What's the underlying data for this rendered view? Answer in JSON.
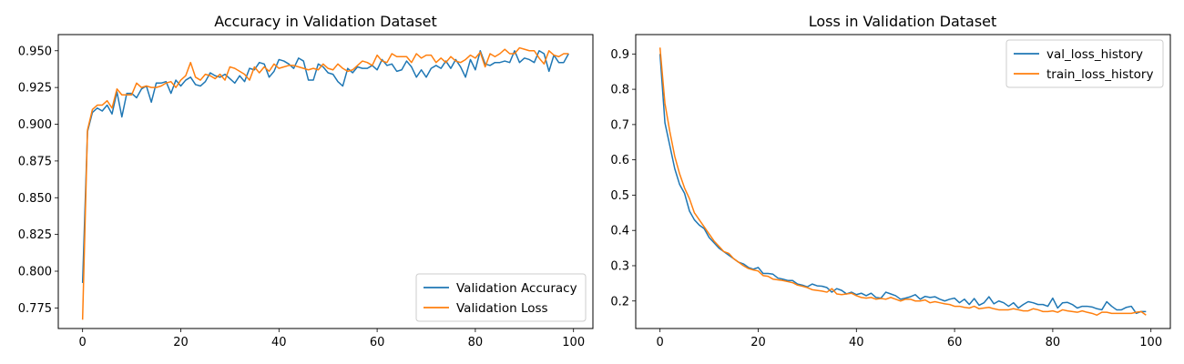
{
  "colors": {
    "series1": "#1f77b4",
    "series2": "#ff7f0e"
  },
  "chart_data": [
    {
      "type": "line",
      "title": "Accuracy in Validation Dataset",
      "xlabel": "",
      "ylabel": "",
      "xlim": [
        -4.95,
        103.95
      ],
      "ylim": [
        0.761,
        0.961
      ],
      "xticks": [
        0,
        20,
        40,
        60,
        80,
        100
      ],
      "yticks": [
        0.775,
        0.8,
        0.825,
        0.85,
        0.875,
        0.9,
        0.925,
        0.95
      ],
      "ytick_labels": [
        "0.775",
        "0.800",
        "0.825",
        "0.850",
        "0.875",
        "0.900",
        "0.925",
        "0.950"
      ],
      "grid": false,
      "legend_position": "lower-right",
      "series": [
        {
          "name": "Validation Accuracy",
          "color": "#1f77b4",
          "x": [
            0,
            1,
            2,
            3,
            4,
            5,
            6,
            7,
            8,
            9,
            10,
            11,
            12,
            13,
            14,
            15,
            16,
            17,
            18,
            19,
            20,
            21,
            22,
            23,
            24,
            25,
            26,
            27,
            28,
            29,
            30,
            31,
            32,
            33,
            34,
            35,
            36,
            37,
            38,
            39,
            40,
            41,
            42,
            43,
            44,
            45,
            46,
            47,
            48,
            49,
            50,
            51,
            52,
            53,
            54,
            55,
            56,
            57,
            58,
            59,
            60,
            61,
            62,
            63,
            64,
            65,
            66,
            67,
            68,
            69,
            70,
            71,
            72,
            73,
            74,
            75,
            76,
            77,
            78,
            79,
            80,
            81,
            82,
            83,
            84,
            85,
            86,
            87,
            88,
            89,
            90,
            91,
            92,
            93,
            94,
            95,
            96,
            97,
            98,
            99
          ],
          "values": [
            0.792,
            0.895,
            0.908,
            0.911,
            0.909,
            0.913,
            0.907,
            0.922,
            0.905,
            0.921,
            0.921,
            0.918,
            0.924,
            0.926,
            0.915,
            0.928,
            0.928,
            0.929,
            0.921,
            0.93,
            0.926,
            0.93,
            0.932,
            0.927,
            0.926,
            0.929,
            0.935,
            0.933,
            0.932,
            0.934,
            0.931,
            0.928,
            0.933,
            0.929,
            0.938,
            0.937,
            0.942,
            0.941,
            0.932,
            0.936,
            0.944,
            0.943,
            0.941,
            0.938,
            0.945,
            0.943,
            0.93,
            0.93,
            0.941,
            0.939,
            0.935,
            0.934,
            0.929,
            0.926,
            0.938,
            0.935,
            0.939,
            0.938,
            0.938,
            0.94,
            0.937,
            0.944,
            0.94,
            0.941,
            0.936,
            0.937,
            0.943,
            0.939,
            0.932,
            0.937,
            0.932,
            0.938,
            0.94,
            0.938,
            0.943,
            0.938,
            0.944,
            0.939,
            0.932,
            0.944,
            0.937,
            0.95,
            0.941,
            0.94,
            0.942,
            0.942,
            0.943,
            0.942,
            0.95,
            0.942,
            0.945,
            0.944,
            0.942,
            0.95,
            0.948,
            0.936,
            0.947,
            0.942,
            0.942,
            0.948
          ]
        },
        {
          "name": "Validation Loss",
          "color": "#ff7f0e",
          "x": [
            0,
            1,
            2,
            3,
            4,
            5,
            6,
            7,
            8,
            9,
            10,
            11,
            12,
            13,
            14,
            15,
            16,
            17,
            18,
            19,
            20,
            21,
            22,
            23,
            24,
            25,
            26,
            27,
            28,
            29,
            30,
            31,
            32,
            33,
            34,
            35,
            36,
            37,
            38,
            39,
            40,
            41,
            42,
            43,
            44,
            45,
            46,
            47,
            48,
            49,
            50,
            51,
            52,
            53,
            54,
            55,
            56,
            57,
            58,
            59,
            60,
            61,
            62,
            63,
            64,
            65,
            66,
            67,
            68,
            69,
            70,
            71,
            72,
            73,
            74,
            75,
            76,
            77,
            78,
            79,
            80,
            81,
            82,
            83,
            84,
            85,
            86,
            87,
            88,
            89,
            90,
            91,
            92,
            93,
            94,
            95,
            96,
            97,
            98,
            99
          ],
          "values": [
            0.767,
            0.896,
            0.91,
            0.913,
            0.913,
            0.916,
            0.911,
            0.924,
            0.92,
            0.92,
            0.92,
            0.928,
            0.925,
            0.926,
            0.925,
            0.925,
            0.926,
            0.928,
            0.929,
            0.925,
            0.93,
            0.933,
            0.942,
            0.932,
            0.93,
            0.934,
            0.933,
            0.931,
            0.934,
            0.93,
            0.939,
            0.938,
            0.936,
            0.934,
            0.93,
            0.939,
            0.935,
            0.939,
            0.936,
            0.941,
            0.938,
            0.939,
            0.94,
            0.94,
            0.939,
            0.938,
            0.937,
            0.938,
            0.937,
            0.941,
            0.938,
            0.937,
            0.941,
            0.938,
            0.936,
            0.937,
            0.94,
            0.943,
            0.942,
            0.94,
            0.947,
            0.943,
            0.942,
            0.948,
            0.946,
            0.946,
            0.946,
            0.942,
            0.948,
            0.945,
            0.947,
            0.947,
            0.942,
            0.945,
            0.942,
            0.946,
            0.943,
            0.942,
            0.944,
            0.947,
            0.945,
            0.949,
            0.939,
            0.948,
            0.946,
            0.948,
            0.951,
            0.948,
            0.948,
            0.952,
            0.951,
            0.95,
            0.95,
            0.945,
            0.941,
            0.95,
            0.947,
            0.946,
            0.948,
            0.948
          ]
        }
      ]
    },
    {
      "type": "line",
      "title": "Loss in Validation Dataset",
      "xlabel": "",
      "ylabel": "",
      "xlim": [
        -4.95,
        103.95
      ],
      "ylim": [
        0.122,
        0.955
      ],
      "xticks": [
        0,
        20,
        40,
        60,
        80,
        100
      ],
      "yticks": [
        0.2,
        0.3,
        0.4,
        0.5,
        0.6,
        0.7,
        0.8,
        0.9
      ],
      "ytick_labels": [
        "0.2",
        "0.3",
        "0.4",
        "0.5",
        "0.6",
        "0.7",
        "0.8",
        "0.9"
      ],
      "grid": false,
      "legend_position": "top-right",
      "series": [
        {
          "name": "val_loss_history",
          "color": "#1f77b4",
          "x": [
            0,
            1,
            2,
            3,
            4,
            5,
            6,
            7,
            8,
            9,
            10,
            11,
            12,
            13,
            14,
            15,
            16,
            17,
            18,
            19,
            20,
            21,
            22,
            23,
            24,
            25,
            26,
            27,
            28,
            29,
            30,
            31,
            32,
            33,
            34,
            35,
            36,
            37,
            38,
            39,
            40,
            41,
            42,
            43,
            44,
            45,
            46,
            47,
            48,
            49,
            50,
            51,
            52,
            53,
            54,
            55,
            56,
            57,
            58,
            59,
            60,
            61,
            62,
            63,
            64,
            65,
            66,
            67,
            68,
            69,
            70,
            71,
            72,
            73,
            74,
            75,
            76,
            77,
            78,
            79,
            80,
            81,
            82,
            83,
            84,
            85,
            86,
            87,
            88,
            89,
            90,
            91,
            92,
            93,
            94,
            95,
            96,
            97,
            98,
            99
          ],
          "values": [
            0.9,
            0.705,
            0.64,
            0.575,
            0.53,
            0.505,
            0.455,
            0.43,
            0.415,
            0.405,
            0.38,
            0.365,
            0.35,
            0.34,
            0.33,
            0.32,
            0.31,
            0.305,
            0.295,
            0.29,
            0.295,
            0.278,
            0.278,
            0.276,
            0.265,
            0.262,
            0.258,
            0.258,
            0.248,
            0.245,
            0.24,
            0.248,
            0.243,
            0.242,
            0.238,
            0.225,
            0.235,
            0.23,
            0.22,
            0.225,
            0.218,
            0.222,
            0.215,
            0.222,
            0.21,
            0.208,
            0.225,
            0.22,
            0.215,
            0.205,
            0.208,
            0.212,
            0.218,
            0.205,
            0.213,
            0.21,
            0.212,
            0.205,
            0.2,
            0.205,
            0.208,
            0.195,
            0.205,
            0.19,
            0.207,
            0.188,
            0.195,
            0.212,
            0.192,
            0.2,
            0.195,
            0.185,
            0.195,
            0.18,
            0.19,
            0.198,
            0.195,
            0.19,
            0.19,
            0.185,
            0.208,
            0.18,
            0.195,
            0.196,
            0.19,
            0.18,
            0.185,
            0.185,
            0.183,
            0.178,
            0.175,
            0.198,
            0.185,
            0.175,
            0.175,
            0.182,
            0.185,
            0.165,
            0.17,
            0.17
          ]
        },
        {
          "name": "train_loss_history",
          "color": "#ff7f0e",
          "x": [
            0,
            1,
            2,
            3,
            4,
            5,
            6,
            7,
            8,
            9,
            10,
            11,
            12,
            13,
            14,
            15,
            16,
            17,
            18,
            19,
            20,
            21,
            22,
            23,
            24,
            25,
            26,
            27,
            28,
            29,
            30,
            31,
            32,
            33,
            34,
            35,
            36,
            37,
            38,
            39,
            40,
            41,
            42,
            43,
            44,
            45,
            46,
            47,
            48,
            49,
            50,
            51,
            52,
            53,
            54,
            55,
            56,
            57,
            58,
            59,
            60,
            61,
            62,
            63,
            64,
            65,
            66,
            67,
            68,
            69,
            70,
            71,
            72,
            73,
            74,
            75,
            76,
            77,
            78,
            79,
            80,
            81,
            82,
            83,
            84,
            85,
            86,
            87,
            88,
            89,
            90,
            91,
            92,
            93,
            94,
            95,
            96,
            97,
            98,
            99
          ],
          "values": [
            0.918,
            0.76,
            0.68,
            0.61,
            0.56,
            0.52,
            0.49,
            0.45,
            0.43,
            0.41,
            0.39,
            0.37,
            0.355,
            0.34,
            0.335,
            0.32,
            0.31,
            0.3,
            0.292,
            0.288,
            0.285,
            0.272,
            0.27,
            0.262,
            0.26,
            0.258,
            0.255,
            0.252,
            0.245,
            0.242,
            0.238,
            0.232,
            0.23,
            0.228,
            0.225,
            0.235,
            0.22,
            0.218,
            0.22,
            0.222,
            0.215,
            0.21,
            0.208,
            0.21,
            0.205,
            0.207,
            0.205,
            0.21,
            0.205,
            0.2,
            0.205,
            0.205,
            0.2,
            0.2,
            0.203,
            0.195,
            0.198,
            0.195,
            0.192,
            0.19,
            0.185,
            0.185,
            0.182,
            0.18,
            0.185,
            0.178,
            0.18,
            0.182,
            0.178,
            0.175,
            0.175,
            0.175,
            0.178,
            0.175,
            0.172,
            0.172,
            0.178,
            0.175,
            0.17,
            0.17,
            0.172,
            0.168,
            0.175,
            0.172,
            0.17,
            0.168,
            0.172,
            0.168,
            0.165,
            0.16,
            0.168,
            0.168,
            0.165,
            0.165,
            0.165,
            0.165,
            0.165,
            0.168,
            0.17,
            0.16
          ]
        }
      ]
    }
  ]
}
